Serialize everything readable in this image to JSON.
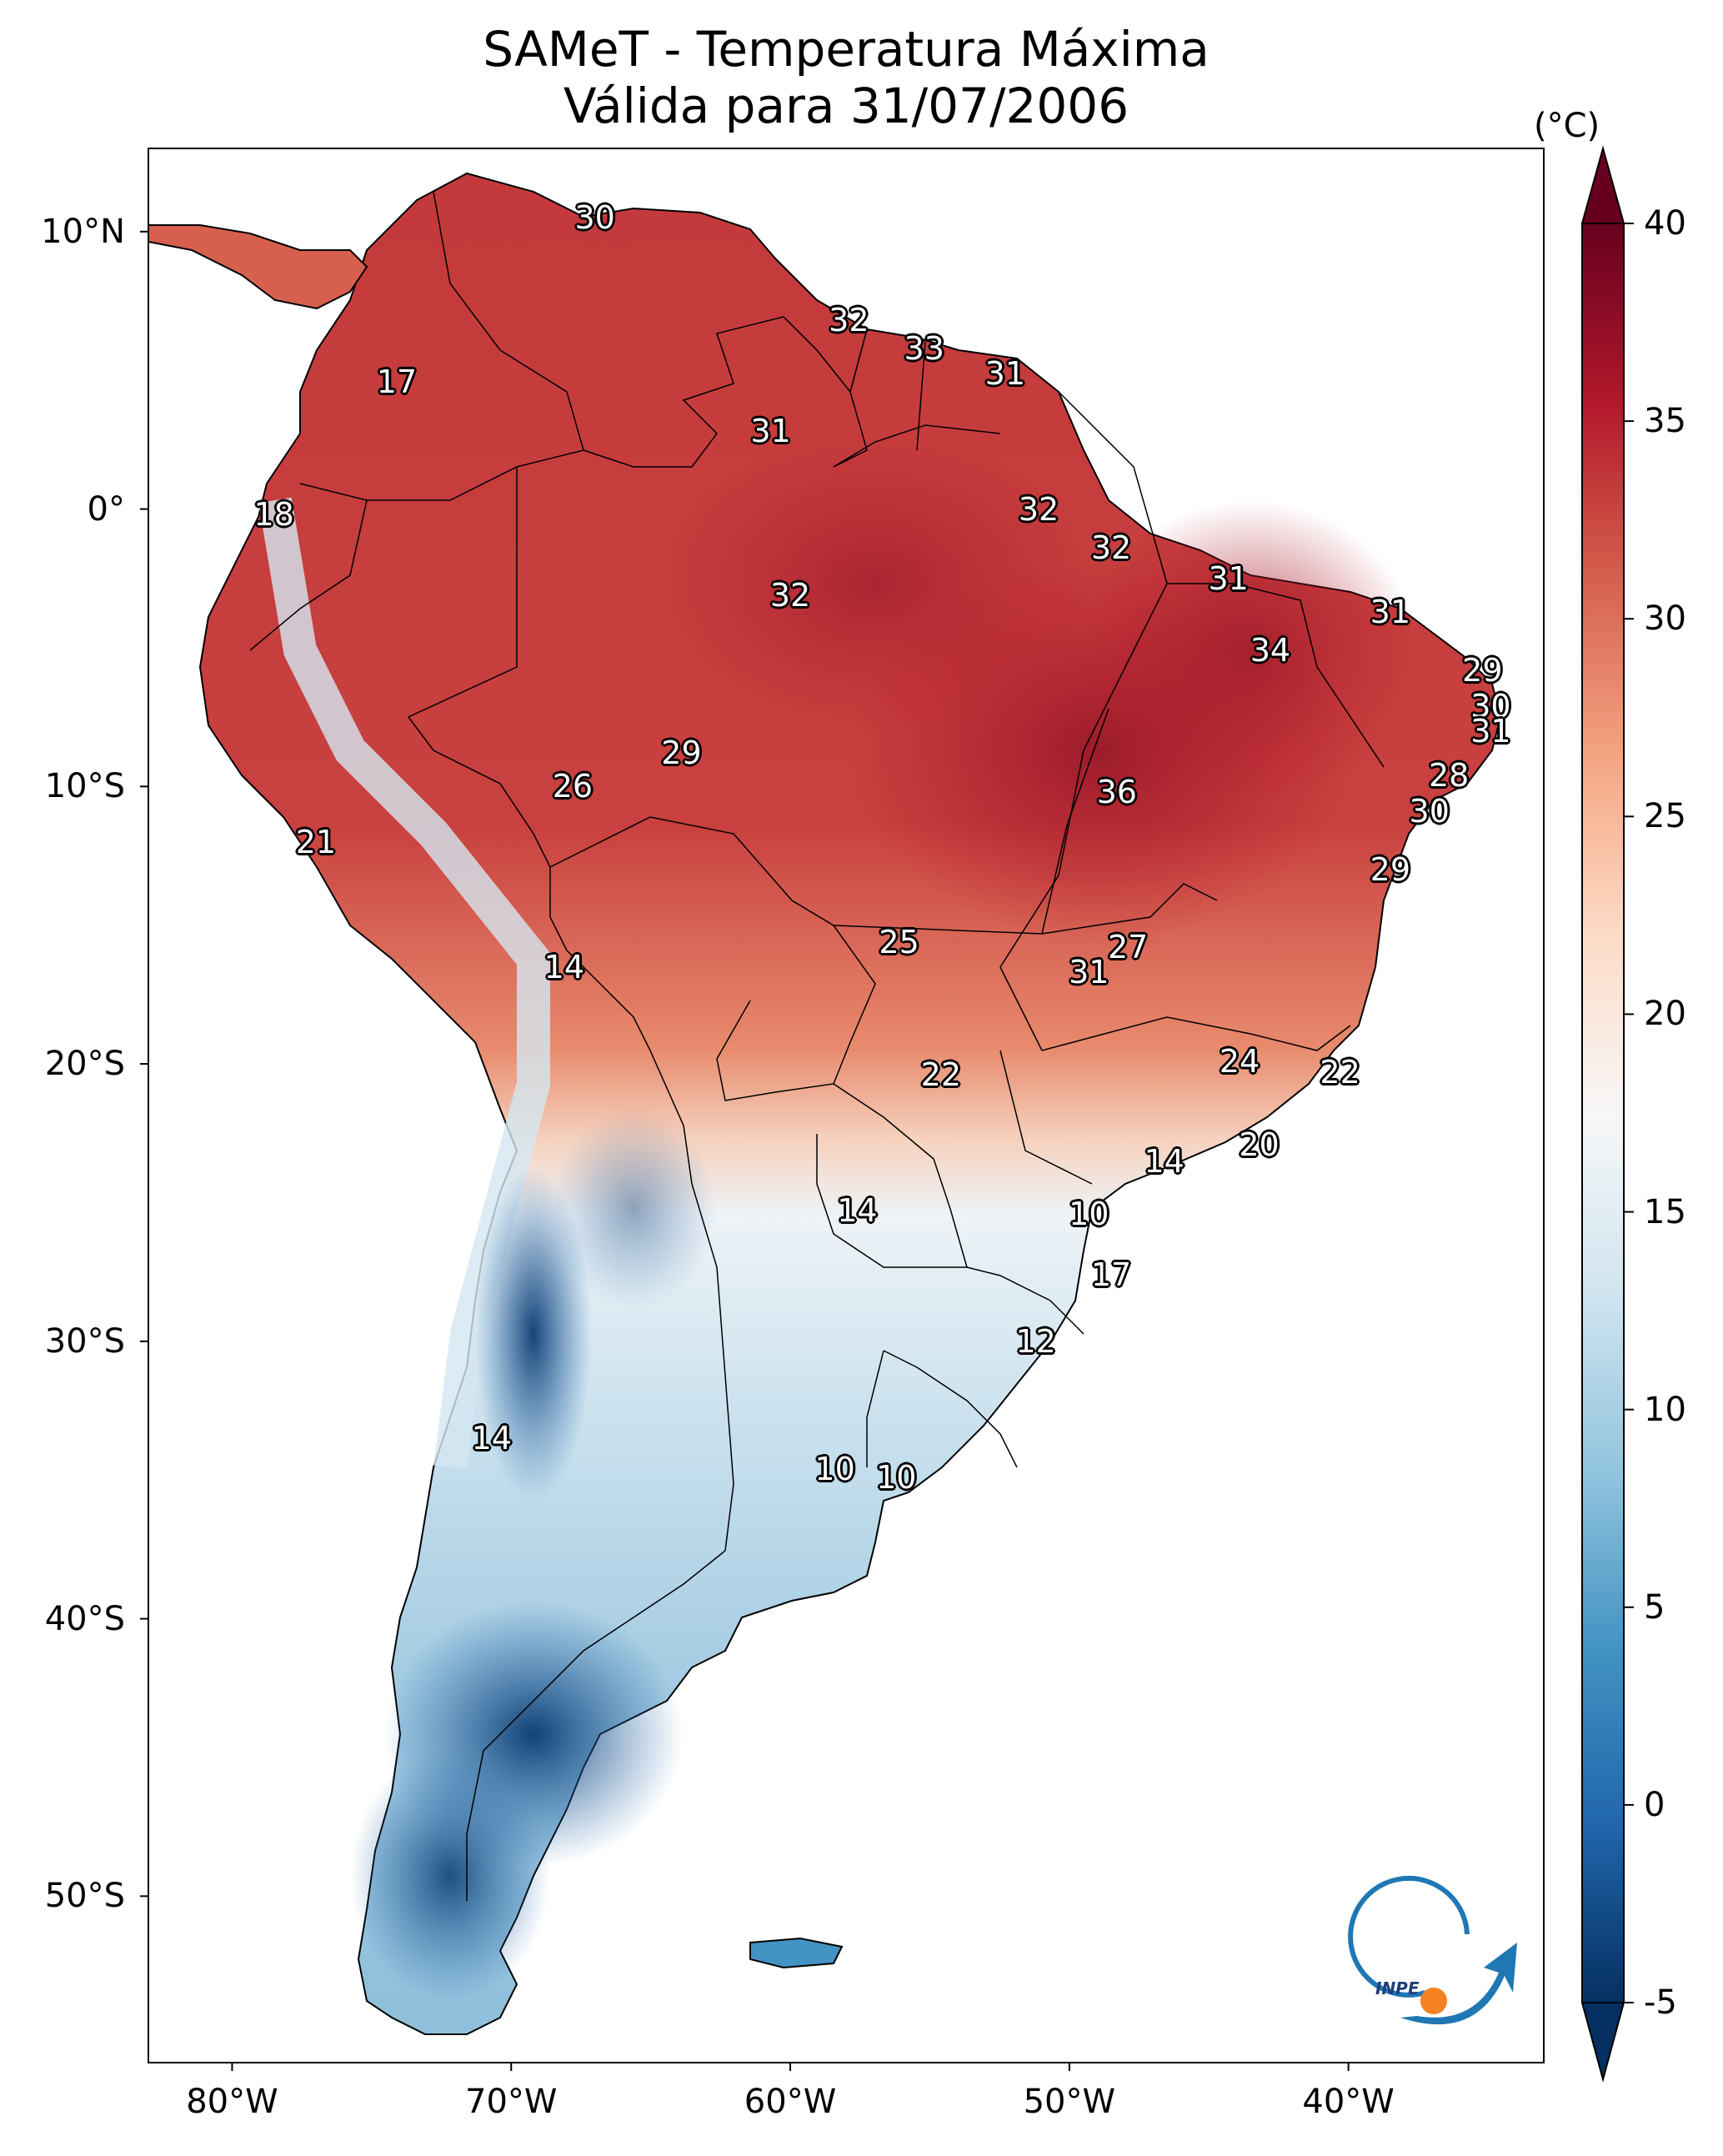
{
  "title": "SAMeT - Temperatura Máxima",
  "subtitle": "Válida para 31/07/2006",
  "colorbar": {
    "unit": "(°C)",
    "min": -5,
    "max": 40,
    "ticks": [
      "-5",
      "0",
      "5",
      "10",
      "15",
      "20",
      "25",
      "30",
      "35",
      "40"
    ],
    "colormap": "RdBu_r",
    "stops": [
      "#053061",
      "#2166ac",
      "#4393c3",
      "#92c5de",
      "#d1e5f0",
      "#f7f7f7",
      "#fddbc7",
      "#f4a582",
      "#d6604d",
      "#b2182b",
      "#67001f"
    ]
  },
  "map": {
    "lon_range": [
      -83,
      -33
    ],
    "lat_range": [
      -56,
      13
    ],
    "lat_labels": [
      {
        "value": 10,
        "text": "10°N"
      },
      {
        "value": 0,
        "text": "0°"
      },
      {
        "value": -10,
        "text": "10°S"
      },
      {
        "value": -20,
        "text": "20°S"
      },
      {
        "value": -30,
        "text": "30°S"
      },
      {
        "value": -40,
        "text": "40°S"
      },
      {
        "value": -50,
        "text": "50°S"
      }
    ],
    "lon_labels": [
      {
        "value": -80,
        "text": "80°W"
      },
      {
        "value": -70,
        "text": "70°W"
      },
      {
        "value": -60,
        "text": "60°W"
      },
      {
        "value": -50,
        "text": "50°W"
      },
      {
        "value": -40,
        "text": "40°W"
      }
    ],
    "city_values": [
      {
        "lon": -67.0,
        "lat": 10.5,
        "text": "30"
      },
      {
        "lon": -57.9,
        "lat": 6.8,
        "text": "32"
      },
      {
        "lon": -55.2,
        "lat": 5.8,
        "text": "33"
      },
      {
        "lon": -52.3,
        "lat": 4.9,
        "text": "31"
      },
      {
        "lon": -74.1,
        "lat": 4.6,
        "text": "17"
      },
      {
        "lon": -60.7,
        "lat": 2.8,
        "text": "31"
      },
      {
        "lon": -78.5,
        "lat": -0.2,
        "text": "18"
      },
      {
        "lon": -51.1,
        "lat": 0.0,
        "text": "32"
      },
      {
        "lon": -48.5,
        "lat": -1.4,
        "text": "32"
      },
      {
        "lon": -60.0,
        "lat": -3.1,
        "text": "32"
      },
      {
        "lon": -44.3,
        "lat": -2.5,
        "text": "31"
      },
      {
        "lon": -38.5,
        "lat": -3.7,
        "text": "31"
      },
      {
        "lon": -42.8,
        "lat": -5.1,
        "text": "34"
      },
      {
        "lon": -35.2,
        "lat": -5.8,
        "text": "29"
      },
      {
        "lon": -34.9,
        "lat": -7.1,
        "text": "30"
      },
      {
        "lon": -34.9,
        "lat": -8.0,
        "text": "31"
      },
      {
        "lon": -36.4,
        "lat": -9.6,
        "text": "28"
      },
      {
        "lon": -37.1,
        "lat": -10.9,
        "text": "30"
      },
      {
        "lon": -63.9,
        "lat": -8.8,
        "text": "29"
      },
      {
        "lon": -67.8,
        "lat": -10.0,
        "text": "26"
      },
      {
        "lon": -48.3,
        "lat": -10.2,
        "text": "36"
      },
      {
        "lon": -77.0,
        "lat": -12.0,
        "text": "21"
      },
      {
        "lon": -38.5,
        "lat": -13.0,
        "text": "29"
      },
      {
        "lon": -56.1,
        "lat": -15.6,
        "text": "25"
      },
      {
        "lon": -47.9,
        "lat": -15.8,
        "text": "27"
      },
      {
        "lon": -49.3,
        "lat": -16.7,
        "text": "31"
      },
      {
        "lon": -68.1,
        "lat": -16.5,
        "text": "14"
      },
      {
        "lon": -43.9,
        "lat": -19.9,
        "text": "24"
      },
      {
        "lon": -54.6,
        "lat": -20.4,
        "text": "22"
      },
      {
        "lon": -40.3,
        "lat": -20.3,
        "text": "22"
      },
      {
        "lon": -43.2,
        "lat": -22.9,
        "text": "20"
      },
      {
        "lon": -46.6,
        "lat": -23.5,
        "text": "14"
      },
      {
        "lon": -57.6,
        "lat": -25.3,
        "text": "14"
      },
      {
        "lon": -49.3,
        "lat": -25.4,
        "text": "10"
      },
      {
        "lon": -48.5,
        "lat": -27.6,
        "text": "17"
      },
      {
        "lon": -51.2,
        "lat": -30.0,
        "text": "12"
      },
      {
        "lon": -70.7,
        "lat": -33.5,
        "text": "14"
      },
      {
        "lon": -58.4,
        "lat": -34.6,
        "text": "10"
      },
      {
        "lon": -56.2,
        "lat": -34.9,
        "text": "10"
      }
    ]
  }
}
